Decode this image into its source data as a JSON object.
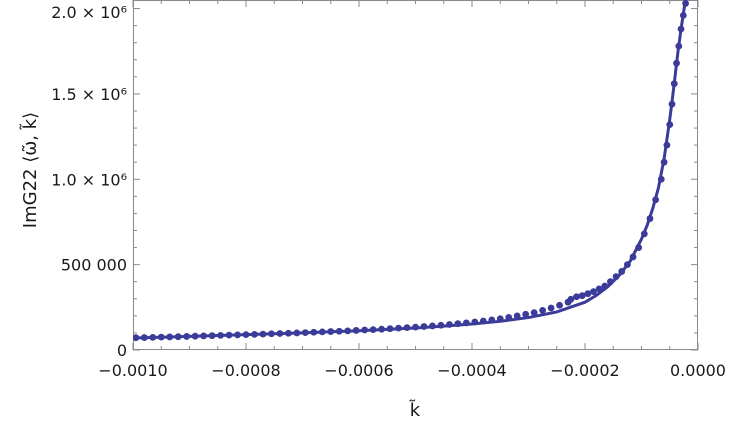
{
  "chart_data": {
    "type": "line",
    "xlabel": "k̃",
    "ylabel": "ImG22 ⟨ω̃, k̃⟩",
    "xlim": [
      -0.001,
      0.0
    ],
    "ylim": [
      0,
      2050000
    ],
    "x_ticks": [
      -0.001,
      -0.0008,
      -0.0006,
      -0.0004,
      -0.0002,
      0.0
    ],
    "x_tick_labels": [
      "−0.0010",
      "−0.0008",
      "−0.0006",
      "−0.0004",
      "−0.0002",
      "0.0000"
    ],
    "y_ticks": [
      0,
      500000,
      1000000,
      1500000,
      2000000
    ],
    "y_tick_labels": [
      "0",
      "500 000",
      "1.0 × 10⁶",
      "1.5 × 10⁶",
      "2.0 × 10⁶"
    ],
    "colors": {
      "line": "#3b3b9a",
      "points": "#3b3b9a",
      "frame": "#8a8a8a"
    },
    "series": [
      {
        "kind": "line",
        "x": [
          -0.001,
          -0.00095,
          -0.0009,
          -0.00085,
          -0.0008,
          -0.00075,
          -0.0007,
          -0.00065,
          -0.0006,
          -0.00055,
          -0.0005,
          -0.00045,
          -0.0004,
          -0.00035,
          -0.0003,
          -0.00025,
          -0.0002,
          -0.00018,
          -0.00016,
          -0.00014,
          -0.00012,
          -0.0001,
          -9e-05,
          -8e-05,
          -7e-05,
          -6e-05,
          -5e-05,
          -4.5e-05,
          -4e-05,
          -3.5e-05,
          -3e-05,
          -2.5e-05,
          -2e-05
        ],
        "y": [
          70000,
          75000,
          80000,
          85000,
          90000,
          95000,
          100000,
          107000,
          113000,
          121000,
          129000,
          140000,
          152000,
          168000,
          190000,
          223000,
          280000,
          320000,
          370000,
          435000,
          520000,
          650000,
          730000,
          830000,
          950000,
          1120000,
          1350000,
          1480000,
          1620000,
          1760000,
          1880000,
          1990000,
          2100000
        ]
      },
      {
        "kind": "points",
        "x": [
          -0.000995,
          -0.00098,
          -0.000965,
          -0.00095,
          -0.000935,
          -0.00092,
          -0.000905,
          -0.00089,
          -0.000875,
          -0.00086,
          -0.000845,
          -0.00083,
          -0.000815,
          -0.0008,
          -0.000785,
          -0.00077,
          -0.000755,
          -0.00074,
          -0.000725,
          -0.00071,
          -0.000695,
          -0.00068,
          -0.000665,
          -0.00065,
          -0.000635,
          -0.00062,
          -0.000605,
          -0.00059,
          -0.000575,
          -0.00056,
          -0.000545,
          -0.00053,
          -0.000515,
          -0.0005,
          -0.000485,
          -0.00047,
          -0.000455,
          -0.00044,
          -0.000425,
          -0.00041,
          -0.000395,
          -0.00038,
          -0.000365,
          -0.00035,
          -0.000335,
          -0.00032,
          -0.000305,
          -0.00029,
          -0.000275,
          -0.00026,
          -0.000245,
          -0.00023,
          -0.000225,
          -0.000215,
          -0.000205,
          -0.000195,
          -0.000185,
          -0.000175,
          -0.000165,
          -0.000155,
          -0.000145,
          -0.000135,
          -0.000125,
          -0.000115,
          -0.000105,
          -9.5e-05,
          -8.5e-05,
          -7.5e-05,
          -6.5e-05,
          -6e-05,
          -5.5e-05,
          -5e-05,
          -4.6e-05,
          -4.2e-05,
          -3.8e-05,
          -3.4e-05,
          -3e-05,
          -2.6e-05,
          -2.2e-05
        ],
        "y": [
          72000,
          73000,
          74000,
          75500,
          76500,
          78000,
          79500,
          81000,
          82500,
          84000,
          85500,
          87000,
          88500,
          90000,
          91500,
          93000,
          95000,
          96500,
          98000,
          100000,
          102000,
          104000,
          106000,
          108000,
          110000,
          112000,
          114500,
          117000,
          119500,
          122000,
          125000,
          128000,
          131000,
          134000,
          137500,
          141000,
          145000,
          149500,
          154000,
          159000,
          164000,
          170000,
          176000,
          183000,
          191000,
          200000,
          209000,
          219000,
          232000,
          246000,
          262000,
          280000,
          297000,
          312000,
          318000,
          330000,
          342000,
          358000,
          375000,
          400000,
          430000,
          460000,
          500000,
          545000,
          600000,
          680000,
          770000,
          880000,
          1000000,
          1100000,
          1200000,
          1320000,
          1440000,
          1560000,
          1680000,
          1780000,
          1880000,
          1960000,
          2030000
        ]
      }
    ]
  }
}
